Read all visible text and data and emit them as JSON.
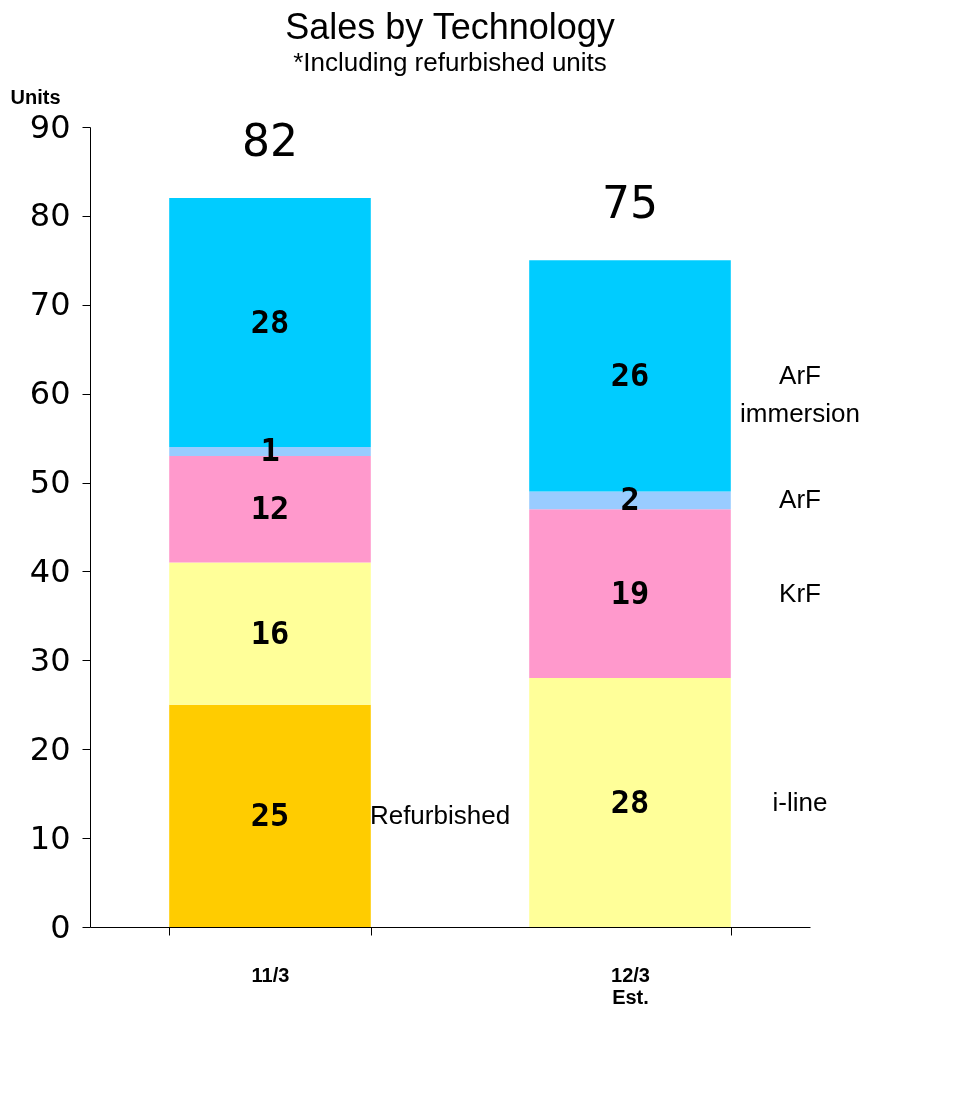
{
  "chart_data": {
    "type": "bar",
    "title": "Sales by Technology",
    "subtitle": "*Including refurbished units",
    "ylabel": "Units",
    "categories": [
      "11/3",
      "12/3 Est."
    ],
    "stacked": true,
    "series": [
      {
        "name": "Refurbished",
        "color": "#ffcc00",
        "values": [
          25,
          null
        ]
      },
      {
        "name": "i-line",
        "color": "#ffff99",
        "values": [
          16,
          28
        ]
      },
      {
        "name": "KrF",
        "color": "#ff99cc",
        "values": [
          12,
          19
        ]
      },
      {
        "name": "ArF",
        "color": "#99ccff",
        "values": [
          1,
          2
        ]
      },
      {
        "name": "ArF immersion",
        "color": "#00ccff",
        "values": [
          28,
          26
        ]
      }
    ],
    "totals": [
      "82",
      "75"
    ],
    "data_labels": true,
    "ylim": [
      0,
      90
    ],
    "yticks": [
      0,
      10,
      20,
      30,
      40,
      50,
      60,
      70,
      80,
      90
    ],
    "grid": false,
    "legend": false
  }
}
